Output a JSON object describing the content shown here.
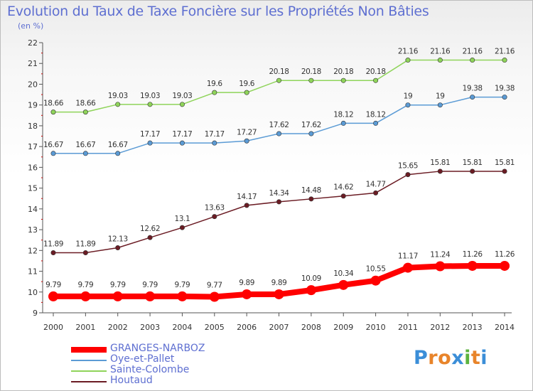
{
  "title": "Evolution du Taux de Taxe Foncière sur les Propriétés Non Bâties",
  "unit": "(en %)",
  "brand": "Proxiti",
  "chart_data": {
    "type": "line",
    "title": "Evolution du Taux de Taxe Foncière sur les Propriétés Non Bâties",
    "ylabel": "(en %)",
    "xlabel": "",
    "x": [
      "2000",
      "2001",
      "2002",
      "2003",
      "2004",
      "2005",
      "2006",
      "2007",
      "2008",
      "2009",
      "2010",
      "2011",
      "2012",
      "2013",
      "2014"
    ],
    "ylim": [
      9,
      22
    ],
    "yticks": [
      "9",
      "10",
      "11",
      "12",
      "13",
      "14",
      "15",
      "16",
      "17",
      "18",
      "19",
      "20",
      "21",
      "22"
    ],
    "grid": "none",
    "legend_position": "bottom-left",
    "series": [
      {
        "name": "GRANGES-NARBOZ",
        "color": "#ff0000",
        "values": [
          9.79,
          9.79,
          9.79,
          9.79,
          9.79,
          9.77,
          9.89,
          9.89,
          10.09,
          10.34,
          10.55,
          11.17,
          11.24,
          11.26,
          11.26
        ],
        "labels": [
          "9.79",
          "9.79",
          "9.79",
          "9.79",
          "9.79",
          "9.77",
          "9.89",
          "9.89",
          "10.09",
          "10.34",
          "10.55",
          "11.17",
          "11.24",
          "11.26",
          "11.26"
        ]
      },
      {
        "name": "Oye-et-Pallet",
        "color": "#5b9bd5",
        "values": [
          16.67,
          16.67,
          16.67,
          17.17,
          17.17,
          17.17,
          17.27,
          17.62,
          17.62,
          18.12,
          18.12,
          19,
          19,
          19.38,
          19.38
        ],
        "labels": [
          "16.67",
          "16.67",
          "16.67",
          "17.17",
          "17.17",
          "17.17",
          "17.27",
          "17.62",
          "17.62",
          "18.12",
          "18.12",
          "19",
          "19",
          "19.38",
          "19.38"
        ]
      },
      {
        "name": "Sainte-Colombe",
        "color": "#8fd45a",
        "values": [
          18.66,
          18.66,
          19.03,
          19.03,
          19.03,
          19.6,
          19.6,
          20.18,
          20.18,
          20.18,
          20.18,
          21.16,
          21.16,
          21.16,
          21.16
        ],
        "labels": [
          "18.66",
          "18.66",
          "19.03",
          "19.03",
          "19.03",
          "19.6",
          "19.6",
          "20.18",
          "20.18",
          "20.18",
          "20.18",
          "21.16",
          "21.16",
          "21.16",
          "21.16"
        ]
      },
      {
        "name": "Houtaud",
        "color": "#6b1c24",
        "values": [
          11.89,
          11.89,
          12.13,
          12.62,
          13.1,
          13.63,
          14.17,
          14.34,
          14.48,
          14.62,
          14.77,
          15.65,
          15.81,
          15.81,
          15.81
        ],
        "labels": [
          "11.89",
          "11.89",
          "12.13",
          "12.62",
          "13.1",
          "13.63",
          "14.17",
          "14.34",
          "14.48",
          "14.62",
          "14.77",
          "15.65",
          "15.81",
          "15.81",
          "15.81"
        ]
      }
    ]
  }
}
